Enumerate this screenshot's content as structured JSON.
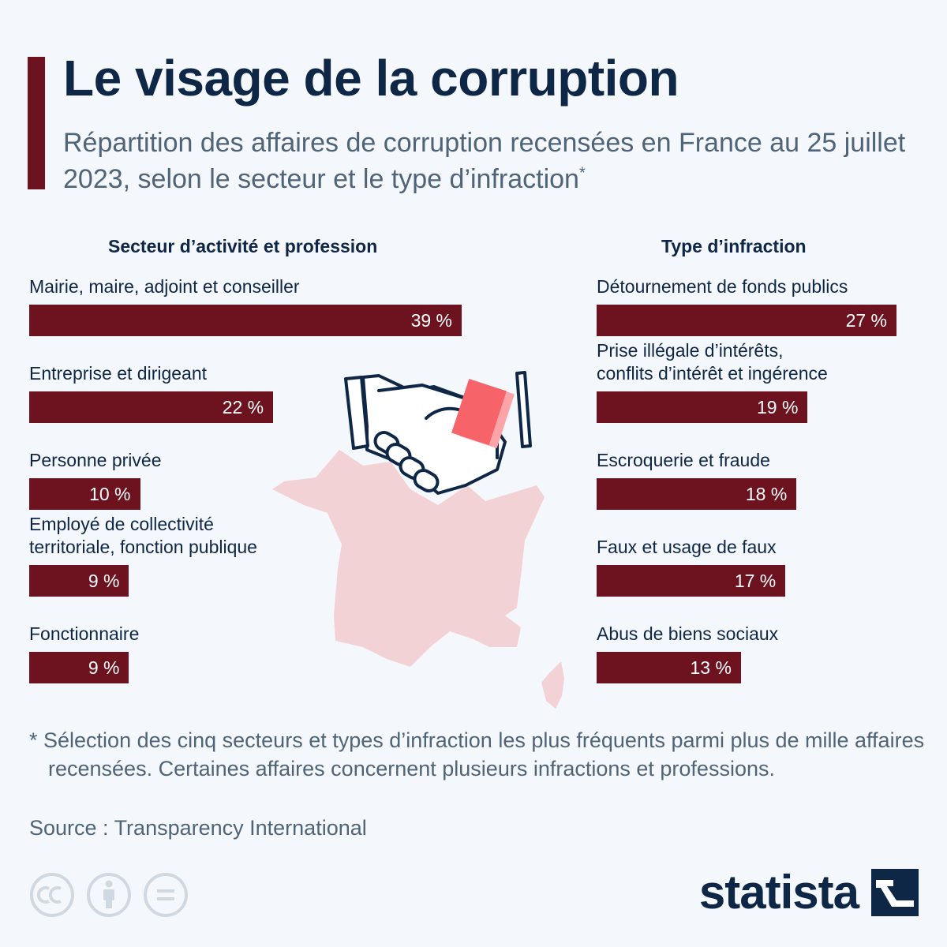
{
  "header": {
    "title": "Le visage de la corruption",
    "subtitle": "Répartition des affaires de corruption recensées en France au 25 juillet 2023, selon le secteur et le type d’infraction",
    "subtitle_marker": "*"
  },
  "colors": {
    "bar": "#6d1320",
    "title": "#0f2747",
    "text_muted": "#4f6478",
    "map": "#f3d2d6",
    "background": "#f4f7fb"
  },
  "chart_data": [
    {
      "type": "bar",
      "orientation": "horizontal",
      "title": "Secteur d’activité et profession",
      "unit": "%",
      "categories": [
        "Mairie, maire, adjoint et conseiller",
        "Entreprise et dirigeant",
        "Personne privée",
        "Employé de collectivité\nterritoriale, fonction publique",
        "Fonctionnaire"
      ],
      "values": [
        39,
        22,
        10,
        9,
        9
      ],
      "value_labels": [
        "39 %",
        "22 %",
        "10 %",
        "9 %",
        "9 %"
      ],
      "xlim": [
        0,
        39
      ],
      "grid": false,
      "legend": "none"
    },
    {
      "type": "bar",
      "orientation": "horizontal",
      "title": "Type d’infraction",
      "unit": "%",
      "categories": [
        "Détournement de fonds publics",
        "Prise illégale d’intérêts,\nconflits d’intérêt et ingérence",
        "Escroquerie et fraude",
        "Faux et usage de faux",
        "Abus de biens sociaux"
      ],
      "values": [
        27,
        19,
        18,
        17,
        13
      ],
      "value_labels": [
        "27 %",
        "19 %",
        "18 %",
        "17 %",
        "13 %"
      ],
      "xlim": [
        0,
        27
      ],
      "grid": false,
      "legend": "none"
    }
  ],
  "illustration": {
    "icons": [
      "france-map-icon",
      "handshake-icon",
      "banknote-icon"
    ]
  },
  "footer": {
    "note": "* Sélection des cinq secteurs et types d’infraction les plus fréquents parmi plus de mille affaires recensées. Certaines affaires concernent plusieurs infractions et professions.",
    "source": "Source : Transparency International",
    "license_icons": [
      "cc-icon",
      "attribution-icon",
      "no-derivatives-icon"
    ],
    "brand": "statista"
  }
}
